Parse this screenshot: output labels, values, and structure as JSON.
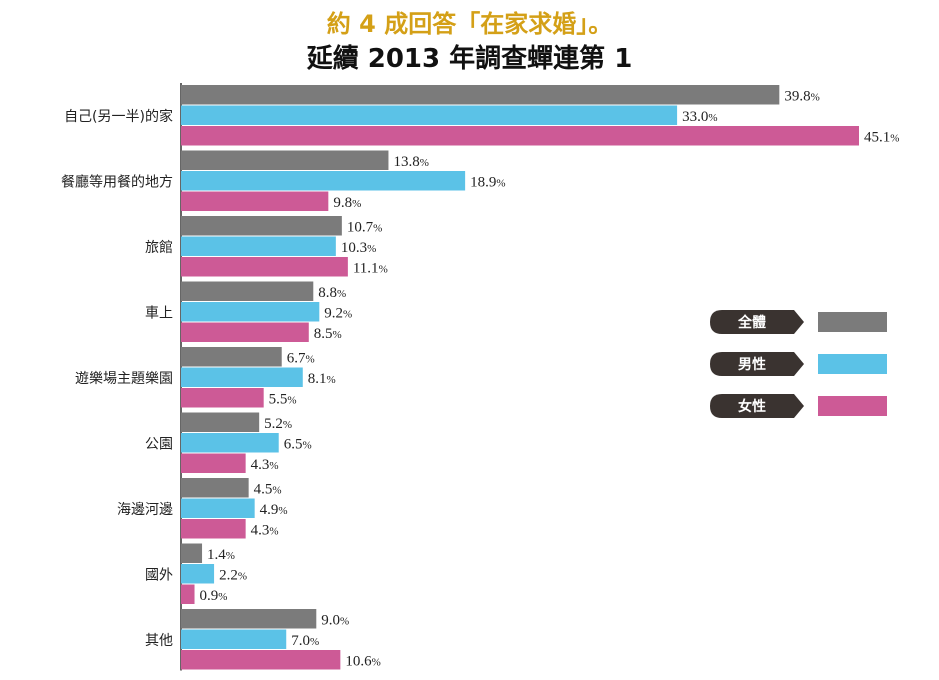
{
  "chart_data": {
    "type": "bar",
    "orientation": "horizontal",
    "title": "約 4 成回答「在家求婚」。",
    "subtitle": "延續 2013 年調查蟬連第 1",
    "categories": [
      "自己(另一半)的家",
      "餐廳等用餐的地方",
      "旅館",
      "車上",
      "遊樂場主題樂園",
      "公園",
      "海邊河邊",
      "國外",
      "其他"
    ],
    "series": [
      {
        "name": "全體",
        "color": "#7b7b7b",
        "values": [
          39.8,
          13.8,
          10.7,
          8.8,
          6.7,
          5.2,
          4.5,
          1.4,
          9.0
        ]
      },
      {
        "name": "男性",
        "color": "#5bc2e7",
        "values": [
          33.0,
          18.9,
          10.3,
          9.2,
          8.1,
          6.5,
          4.9,
          2.2,
          7.0
        ]
      },
      {
        "name": "女性",
        "color": "#cd5a96",
        "values": [
          45.1,
          9.8,
          11.1,
          8.5,
          5.5,
          4.3,
          4.3,
          0.9,
          10.6
        ]
      }
    ],
    "value_suffix": "%",
    "xlim": [
      0,
      45.1
    ],
    "grid": false,
    "legend_placement": "right"
  }
}
